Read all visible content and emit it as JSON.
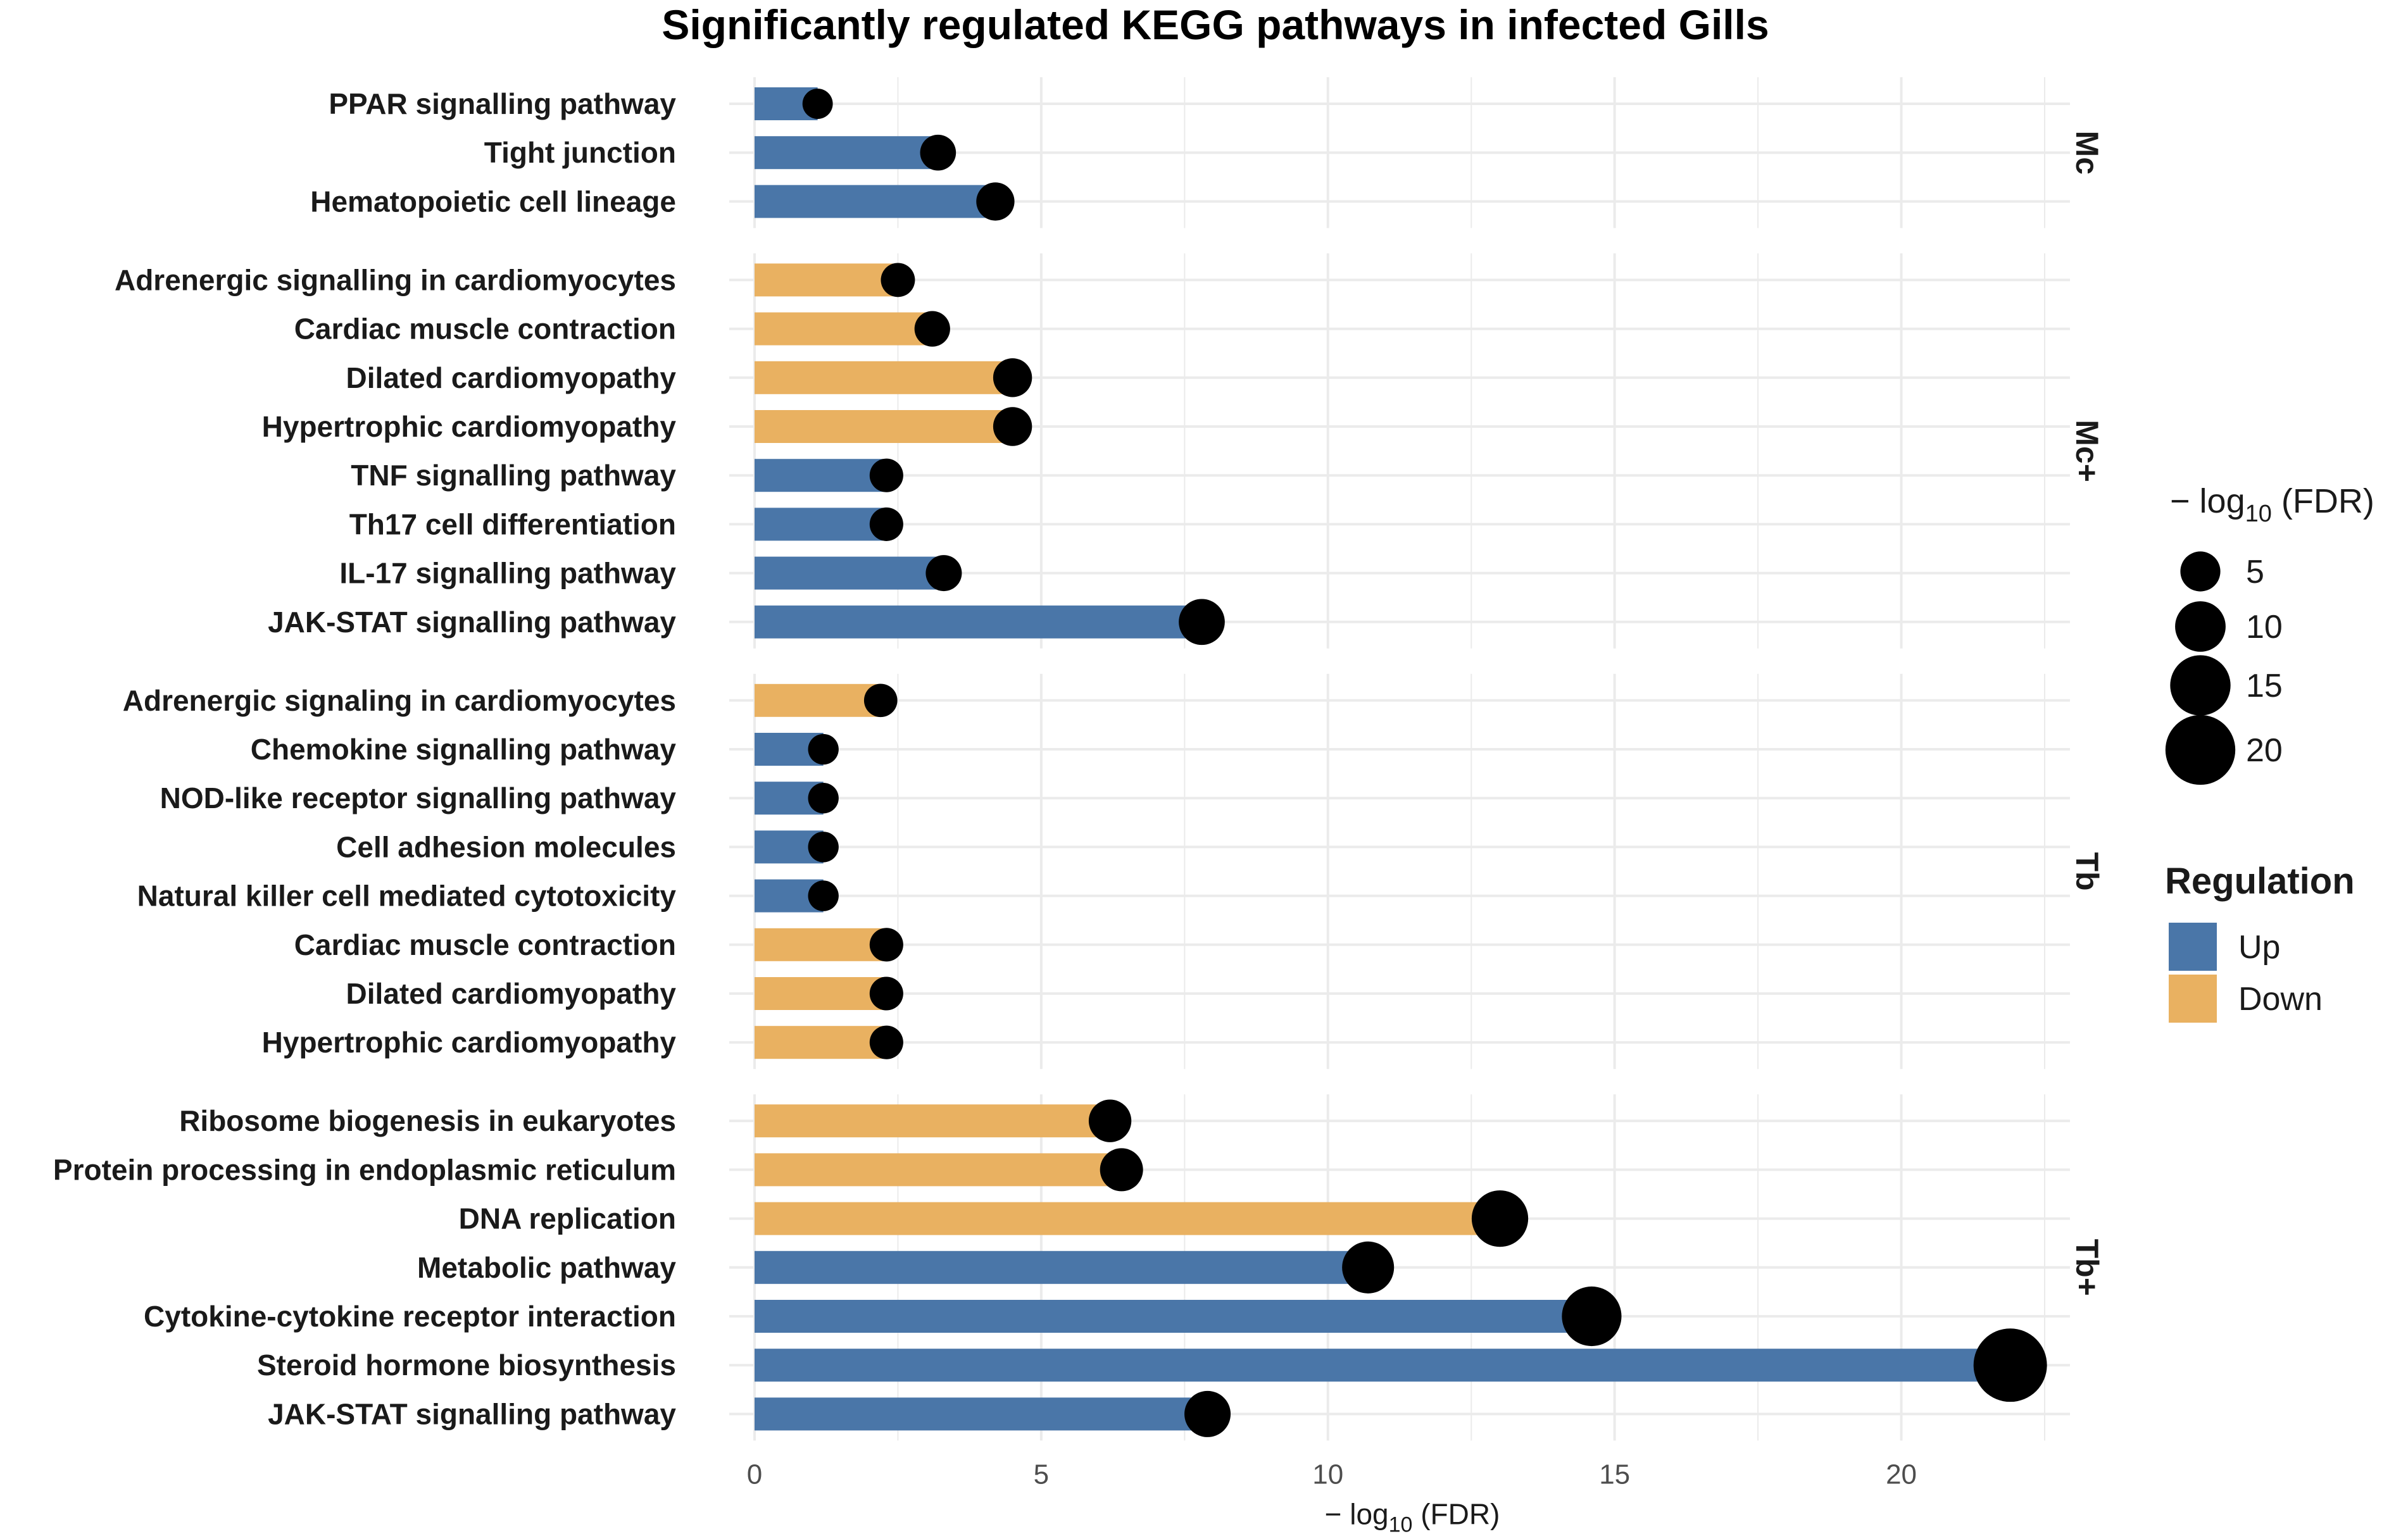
{
  "chart_data": {
    "type": "bar",
    "title": "Significantly regulated KEGG pathways in infected Gills",
    "xlabel": {
      "prefix": "− log",
      "sub": "10",
      "suffix": " (FDR)"
    },
    "xlim": [
      0,
      22.5
    ],
    "xticks": [
      0,
      5,
      10,
      15,
      20
    ],
    "colors": {
      "Up": "#4a76a8",
      "Down": "#e9b161",
      "point": "#000000",
      "grid": "#ebebeb"
    },
    "size_legend": {
      "title": {
        "prefix": "− log",
        "sub": "10",
        "suffix": " (FDR)"
      },
      "values": [
        5,
        10,
        15,
        20
      ]
    },
    "fill_legend": {
      "title": "Regulation",
      "entries": [
        {
          "label": "Up",
          "key": "Up"
        },
        {
          "label": "Down",
          "key": "Down"
        }
      ]
    },
    "facets": [
      {
        "name": "Mc",
        "rows": [
          {
            "label": "PPAR signalling pathway",
            "value": 1.1,
            "regulation": "Up"
          },
          {
            "label": "Tight junction",
            "value": 3.2,
            "regulation": "Up"
          },
          {
            "label": "Hematopoietic cell lineage",
            "value": 4.2,
            "regulation": "Up"
          }
        ]
      },
      {
        "name": "Mc+",
        "rows": [
          {
            "label": "Adrenergic signalling in cardiomyocytes",
            "value": 2.5,
            "regulation": "Down"
          },
          {
            "label": "Cardiac muscle contraction",
            "value": 3.1,
            "regulation": "Down"
          },
          {
            "label": "Dilated cardiomyopathy",
            "value": 4.5,
            "regulation": "Down"
          },
          {
            "label": "Hypertrophic cardiomyopathy",
            "value": 4.5,
            "regulation": "Down"
          },
          {
            "label": "TNF signalling pathway",
            "value": 2.3,
            "regulation": "Up"
          },
          {
            "label": "Th17 cell differentiation",
            "value": 2.3,
            "regulation": "Up"
          },
          {
            "label": "IL-17 signalling pathway",
            "value": 3.3,
            "regulation": "Up"
          },
          {
            "label": "JAK-STAT signalling pathway",
            "value": 7.8,
            "regulation": "Up"
          }
        ]
      },
      {
        "name": "Tb",
        "rows": [
          {
            "label": "Adrenergic signaling in cardiomyocytes",
            "value": 2.2,
            "regulation": "Down"
          },
          {
            "label": "Chemokine signalling pathway",
            "value": 1.2,
            "regulation": "Up"
          },
          {
            "label": "NOD-like receptor signalling pathway",
            "value": 1.2,
            "regulation": "Up"
          },
          {
            "label": "Cell adhesion molecules",
            "value": 1.2,
            "regulation": "Up"
          },
          {
            "label": "Natural killer cell mediated cytotoxicity",
            "value": 1.2,
            "regulation": "Up"
          },
          {
            "label": "Cardiac muscle contraction",
            "value": 2.3,
            "regulation": "Down"
          },
          {
            "label": "Dilated cardiomyopathy",
            "value": 2.3,
            "regulation": "Down"
          },
          {
            "label": "Hypertrophic cardiomyopathy",
            "value": 2.3,
            "regulation": "Down"
          }
        ]
      },
      {
        "name": "Tb+",
        "rows": [
          {
            "label": "Ribosome biogenesis in eukaryotes",
            "value": 6.2,
            "regulation": "Down"
          },
          {
            "label": "Protein processing in endoplasmic reticulum",
            "value": 6.4,
            "regulation": "Down"
          },
          {
            "label": "DNA replication",
            "value": 13.0,
            "regulation": "Down"
          },
          {
            "label": "Metabolic pathway",
            "value": 10.7,
            "regulation": "Up"
          },
          {
            "label": "Cytokine-cytokine receptor interaction",
            "value": 14.6,
            "regulation": "Up"
          },
          {
            "label": "Steroid hormone biosynthesis",
            "value": 21.9,
            "regulation": "Up"
          },
          {
            "label": "JAK-STAT signalling pathway",
            "value": 7.9,
            "regulation": "Up"
          }
        ]
      }
    ]
  }
}
